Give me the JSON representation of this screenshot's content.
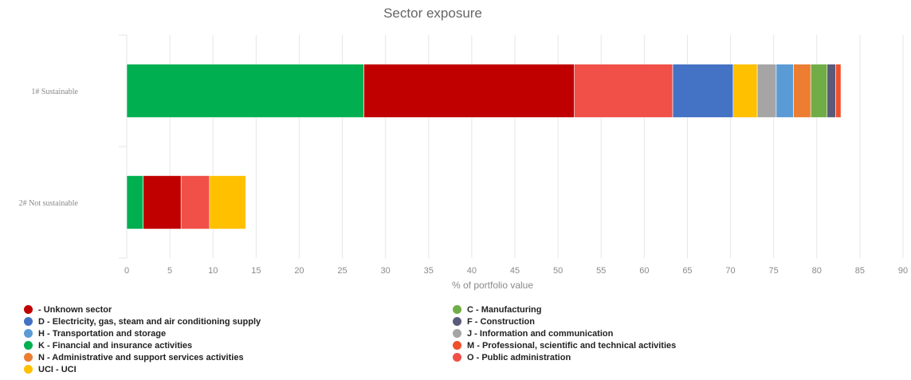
{
  "chart_data": {
    "type": "bar",
    "orientation": "horizontal",
    "stacked": true,
    "title": "Sector exposure",
    "xlabel": "% of portfolio value",
    "ylabel": "",
    "xlim": [
      0,
      90
    ],
    "xticks": [
      0,
      5,
      10,
      15,
      20,
      25,
      30,
      35,
      40,
      45,
      50,
      55,
      60,
      65,
      70,
      75,
      80,
      85,
      90
    ],
    "grid": true,
    "legend_position": "bottom",
    "categories": [
      "1# Sustainable",
      "2# Not sustainable"
    ],
    "series": [
      {
        "name": "K - Financial and insurance activities",
        "color": "#00b050",
        "values": [
          27.5,
          1.9
        ]
      },
      {
        "name": "- Unknown sector",
        "color": "#c00000",
        "values": [
          24.4,
          4.4
        ]
      },
      {
        "name": "O - Public administration",
        "color": "#f05048",
        "values": [
          11.4,
          3.3
        ]
      },
      {
        "name": "D - Electricity, gas, steam and air conditioning supply",
        "color": "#4472c4",
        "values": [
          7.0,
          0
        ]
      },
      {
        "name": "UCI - UCI",
        "color": "#ffc000",
        "values": [
          2.8,
          4.2
        ]
      },
      {
        "name": "J - Information and communication",
        "color": "#a5a5a5",
        "values": [
          2.2,
          0
        ]
      },
      {
        "name": "H - Transportation and storage",
        "color": "#5b9bd5",
        "values": [
          2.0,
          0
        ]
      },
      {
        "name": "N - Administrative and support services activities",
        "color": "#ed7d31",
        "values": [
          2.0,
          0
        ]
      },
      {
        "name": "C - Manufacturing",
        "color": "#70ad47",
        "values": [
          1.9,
          0
        ]
      },
      {
        "name": "F - Construction",
        "color": "#5a5a7a",
        "values": [
          1.0,
          0
        ]
      },
      {
        "name": "M - Professional, scientific and technical activities",
        "color": "#f0502a",
        "values": [
          0.6,
          0
        ]
      }
    ]
  },
  "legend": {
    "left": [
      {
        "label": "- Unknown sector",
        "color": "#c00000"
      },
      {
        "label": "D - Electricity, gas, steam and air conditioning supply",
        "color": "#4472c4"
      },
      {
        "label": "H - Transportation and storage",
        "color": "#5b9bd5"
      },
      {
        "label": "K - Financial and insurance activities",
        "color": "#00b050"
      },
      {
        "label": "N - Administrative and support services activities",
        "color": "#ed7d31"
      },
      {
        "label": "UCI - UCI",
        "color": "#ffc000"
      }
    ],
    "right": [
      {
        "label": "C - Manufacturing",
        "color": "#70ad47"
      },
      {
        "label": "F - Construction",
        "color": "#5a5a7a"
      },
      {
        "label": "J - Information and communication",
        "color": "#a5a5a5"
      },
      {
        "label": "M - Professional, scientific and technical activities",
        "color": "#f0502a"
      },
      {
        "label": "O - Public administration",
        "color": "#f05048"
      }
    ]
  }
}
